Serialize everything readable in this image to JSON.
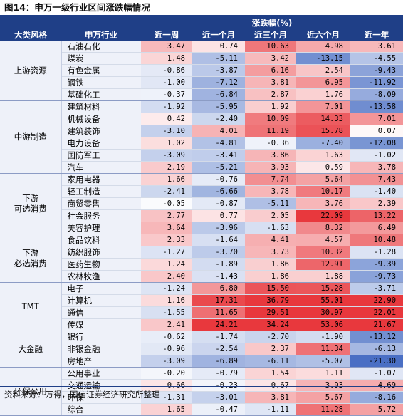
{
  "title": "图14：申万一级行业区间涨跌幅情况",
  "header": {
    "change_label": "涨跌幅(%)",
    "category": "大类风格",
    "industry": "申万行业",
    "periods": [
      "近一周",
      "近一个月",
      "近三个月",
      "近六个月",
      "近一年"
    ]
  },
  "groups": [
    {
      "name": "上游资源",
      "rows": [
        {
          "industry": "石油石化",
          "values": [
            "3.47",
            "0.74",
            "10.63",
            "4.98",
            "3.61"
          ]
        },
        {
          "industry": "煤炭",
          "values": [
            "1.48",
            "-5.11",
            "3.42",
            "-13.15",
            "-4.55"
          ]
        },
        {
          "industry": "有色金属",
          "values": [
            "-0.86",
            "-3.87",
            "6.16",
            "2.54",
            "-9.43"
          ]
        },
        {
          "industry": "钢铁",
          "values": [
            "-1.00",
            "-7.12",
            "3.81",
            "6.95",
            "-11.92"
          ]
        },
        {
          "industry": "基础化工",
          "values": [
            "-0.37",
            "-6.84",
            "2.87",
            "1.76",
            "-8.09"
          ]
        }
      ]
    },
    {
      "name": "中游制造",
      "rows": [
        {
          "industry": "建筑材料",
          "values": [
            "-1.92",
            "-5.95",
            "1.92",
            "7.01",
            "-13.58"
          ]
        },
        {
          "industry": "机械设备",
          "values": [
            "0.42",
            "-2.40",
            "10.09",
            "14.33",
            "7.01"
          ]
        },
        {
          "industry": "建筑装饰",
          "values": [
            "-3.10",
            "4.01",
            "11.19",
            "15.78",
            "0.07"
          ]
        },
        {
          "industry": "电力设备",
          "values": [
            "1.02",
            "-4.81",
            "-0.36",
            "-7.40",
            "-12.08"
          ]
        },
        {
          "industry": "国防军工",
          "values": [
            "-3.09",
            "-3.41",
            "3.86",
            "1.63",
            "-1.02"
          ]
        },
        {
          "industry": "汽车",
          "values": [
            "2.19",
            "-5.21",
            "3.93",
            "0.59",
            "3.78"
          ]
        }
      ]
    },
    {
      "name": "下游\n可选消费",
      "rows": [
        {
          "industry": "家用电器",
          "values": [
            "1.66",
            "-0.76",
            "7.74",
            "5.64",
            "7.43"
          ]
        },
        {
          "industry": "轻工制造",
          "values": [
            "-2.41",
            "-6.66",
            "3.78",
            "10.17",
            "-1.40"
          ]
        },
        {
          "industry": "商贸零售",
          "values": [
            "-0.05",
            "-0.87",
            "-5.11",
            "3.76",
            "2.39"
          ]
        },
        {
          "industry": "社会服务",
          "values": [
            "2.77",
            "0.77",
            "2.05",
            "22.09",
            "13.22"
          ]
        },
        {
          "industry": "美容护理",
          "values": [
            "3.64",
            "-3.96",
            "-1.63",
            "8.32",
            "6.49"
          ]
        }
      ]
    },
    {
      "name": "下游\n必选消费",
      "rows": [
        {
          "industry": "食品饮料",
          "values": [
            "2.33",
            "-1.64",
            "4.41",
            "4.57",
            "10.48"
          ]
        },
        {
          "industry": "纺织服饰",
          "values": [
            "-1.27",
            "-3.70",
            "3.73",
            "10.32",
            "-1.28"
          ]
        },
        {
          "industry": "医药生物",
          "values": [
            "1.24",
            "-1.89",
            "1.86",
            "12.91",
            "-9.39"
          ]
        },
        {
          "industry": "农林牧渔",
          "values": [
            "2.40",
            "-1.43",
            "1.86",
            "1.88",
            "-9.73"
          ]
        }
      ]
    },
    {
      "name": "TMT",
      "rows": [
        {
          "industry": "电子",
          "values": [
            "-1.24",
            "6.80",
            "15.50",
            "15.28",
            "-3.71"
          ]
        },
        {
          "industry": "计算机",
          "values": [
            "1.16",
            "17.31",
            "36.79",
            "55.01",
            "22.90"
          ]
        },
        {
          "industry": "通信",
          "values": [
            "-1.55",
            "11.65",
            "29.51",
            "30.97",
            "22.01"
          ]
        },
        {
          "industry": "传媒",
          "values": [
            "2.41",
            "24.21",
            "34.24",
            "53.06",
            "21.67"
          ]
        }
      ]
    },
    {
      "name": "大金融",
      "rows": [
        {
          "industry": "银行",
          "values": [
            "-0.62",
            "-1.74",
            "-2.70",
            "-1.90",
            "-13.12"
          ]
        },
        {
          "industry": "非银金融",
          "values": [
            "-0.96",
            "-2.54",
            "2.37",
            "11.34",
            "-6.13"
          ]
        },
        {
          "industry": "房地产",
          "values": [
            "-3.09",
            "-6.89",
            "-6.11",
            "-5.07",
            "-21.30"
          ]
        }
      ]
    },
    {
      "name": "环保公用",
      "rows": [
        {
          "industry": "公用事业",
          "values": [
            "-0.20",
            "-0.79",
            "1.54",
            "1.11",
            "-1.07"
          ]
        },
        {
          "industry": "交通运输",
          "values": [
            "0.66",
            "-0.23",
            "0.67",
            "3.93",
            "4.69"
          ]
        },
        {
          "industry": "环保",
          "values": [
            "-1.31",
            "-3.01",
            "3.81",
            "5.67",
            "-8.16"
          ]
        },
        {
          "industry": "综合",
          "values": [
            "1.65",
            "-0.47",
            "-1.11",
            "11.28",
            "5.72"
          ]
        }
      ]
    }
  ],
  "colors": {
    "header_bg": "#1f3f87",
    "positive": "#e8383d",
    "negative": "#4a6fc4",
    "label_bg": "#eef1f9"
  },
  "footer": "资料来源：万得，国信证券经济研究所整理"
}
